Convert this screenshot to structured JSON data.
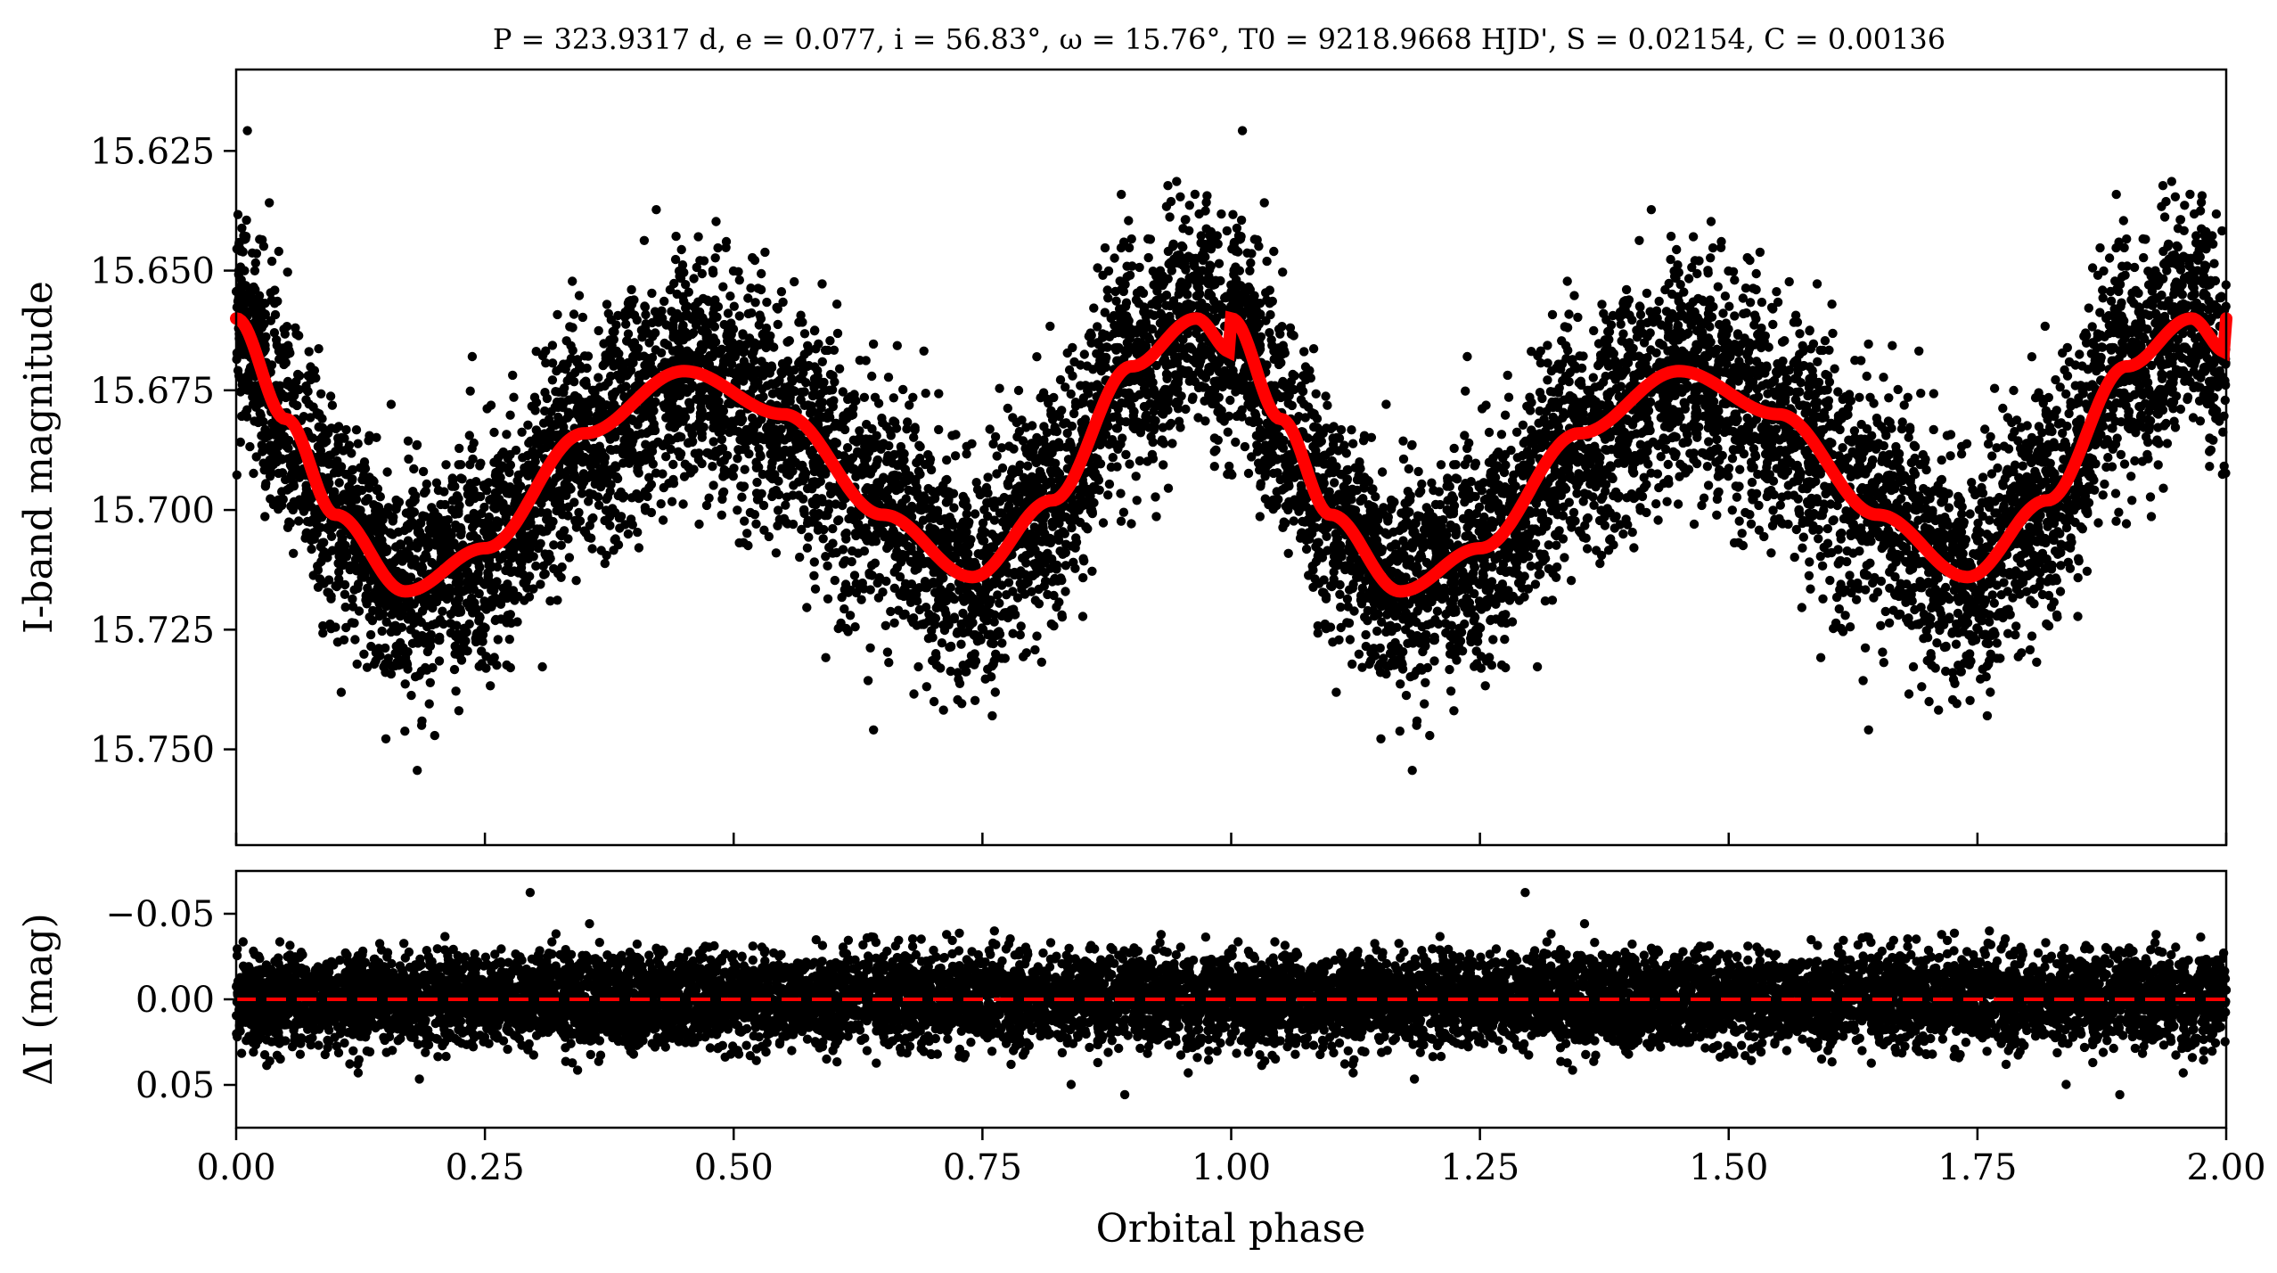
{
  "chart_data": [
    {
      "type": "scatter",
      "panel": "top",
      "title": "P = 323.9317 d, e = 0.077, i = 56.83°, ω = 15.76°, T0 = 9218.9668 HJD', S = 0.02154, C = 0.00136",
      "xlabel": "Orbital phase",
      "ylabel": "I-band magnitude",
      "xlim": [
        0.0,
        2.0
      ],
      "ylim": [
        15.77,
        15.608
      ],
      "y_inverted": true,
      "xticks": [
        0.0,
        0.25,
        0.5,
        0.75,
        1.0,
        1.25,
        1.5,
        1.75,
        2.0
      ],
      "yticks": [
        15.625,
        15.65,
        15.675,
        15.7,
        15.725,
        15.75
      ],
      "ytick_labels": [
        "15.625",
        "15.650",
        "15.675",
        "15.700",
        "15.725",
        "15.750"
      ],
      "point_color": "#000000",
      "model_color": "#ff0000",
      "series": [
        {
          "kind": "points",
          "period_in_phase": 1.0,
          "scatter_mag": 0.012
        },
        {
          "kind": "model",
          "description_points": {
            "x": [
              0.0,
              0.05,
              0.1,
              0.17,
              0.25,
              0.35,
              0.45,
              0.55,
              0.65,
              0.74,
              0.82,
              0.9,
              0.965,
              1.0
            ],
            "y": [
              15.66,
              15.681,
              15.701,
              15.717,
              15.708,
              15.684,
              15.671,
              15.68,
              15.701,
              15.714,
              15.698,
              15.67,
              15.66,
              15.667
            ]
          }
        }
      ]
    },
    {
      "type": "scatter",
      "panel": "bottom",
      "xlabel": "Orbital phase",
      "ylabel": "ΔI (mag)",
      "xlim": [
        0.0,
        2.0
      ],
      "ylim": [
        0.075,
        -0.075
      ],
      "y_inverted": true,
      "xticks": [
        0.0,
        0.25,
        0.5,
        0.75,
        1.0,
        1.25,
        1.5,
        1.75,
        2.0
      ],
      "xtick_labels": [
        "0.00",
        "0.25",
        "0.50",
        "0.75",
        "1.00",
        "1.25",
        "1.50",
        "1.75",
        "2.00"
      ],
      "yticks": [
        -0.05,
        0.0,
        0.05
      ],
      "ytick_labels": [
        "−0.05",
        "0.00",
        "0.05"
      ],
      "zero_line": 0.0,
      "zero_line_color": "#ff0000",
      "point_color": "#000000",
      "series": [
        {
          "kind": "residuals",
          "scatter_mag": 0.013
        }
      ]
    }
  ]
}
